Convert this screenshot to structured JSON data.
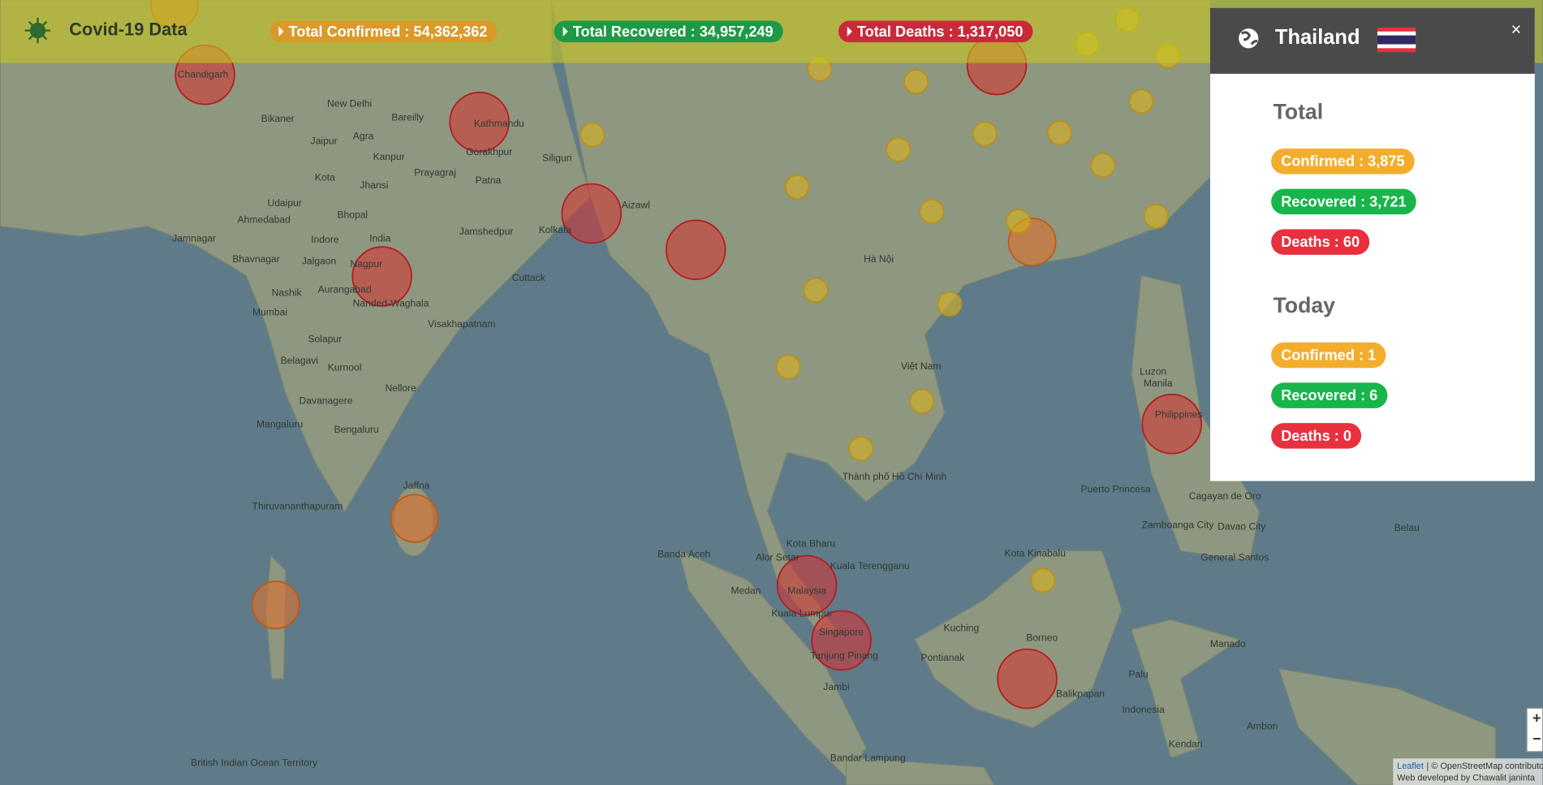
{
  "header": {
    "title": "Covid-19 Data",
    "total_confirmed": "Total Confirmed : 54,362,362",
    "total_recovered": "Total Recovered : 34,957,249",
    "total_deaths": "Total Deaths : 1,317,050"
  },
  "panel": {
    "country": "Thailand",
    "close": "×",
    "total": {
      "heading": "Total",
      "confirmed": "Confirmed : 3,875",
      "recovered": "Recovered : 3,721",
      "deaths": "Deaths : 60"
    },
    "today": {
      "heading": "Today",
      "confirmed": "Confirmed : 1",
      "recovered": "Recovered : 6",
      "deaths": "Deaths : 0"
    }
  },
  "zoom": {
    "in": "+",
    "out": "−"
  },
  "attribution": {
    "leaflet": "Leaflet",
    "osm": "| © OpenStreetMap contributors",
    "credit": "Web developed by Chawalit janinta"
  },
  "map": {
    "labels": [
      "Chandigarh",
      "New Delhi",
      "Bikaner",
      "Bareilly",
      "Jaipur",
      "Agra",
      "Kanpur",
      "Kathmandu",
      "Gorakhpur",
      "Siliguri",
      "Prayagraj",
      "Patna",
      "Kota",
      "Jhansi",
      "Udaipur",
      "Ahmedabad",
      "Bhopal",
      "Jamshedpur",
      "Kolkata",
      "Aizawl",
      "India",
      "Indore",
      "Jamnagar",
      "Bhavnagar",
      "Jalgaon",
      "Nagpur",
      "Nashik",
      "Aurangabad",
      "Nanded-Waghala",
      "Cuttack",
      "Mumbai",
      "Visakhapatnam",
      "Solapur",
      "Kurnool",
      "Belagavi",
      "Nellore",
      "Davanagere",
      "Mangaluru",
      "Bengaluru",
      "Thiruvananthapuram",
      "Jaffna",
      "Hà Nội",
      "Việt Nam",
      "Thành phố Hồ Chí Minh",
      "Luzon",
      "Manila",
      "Philippines",
      "Puerto Princesa",
      "Zamboanga City",
      "Cagayan de Oro",
      "Davao City",
      "General Santos",
      "Belau",
      "Kota Bharu",
      "Alor Setar",
      "Kuala Terengganu",
      "Banda Aceh",
      "Medan",
      "Malaysia",
      "Kuala Lumpur",
      "Singapore",
      "Tanjung Pinang",
      "Kota Kinabalu",
      "Kuching",
      "Borneo",
      "Pontianak",
      "Balikpapan",
      "Indonesia",
      "Palu",
      "Manado",
      "Ambon",
      "Kendari",
      "Jambi",
      "Bandar Lampung",
      "British Indian Ocean Territory"
    ]
  }
}
